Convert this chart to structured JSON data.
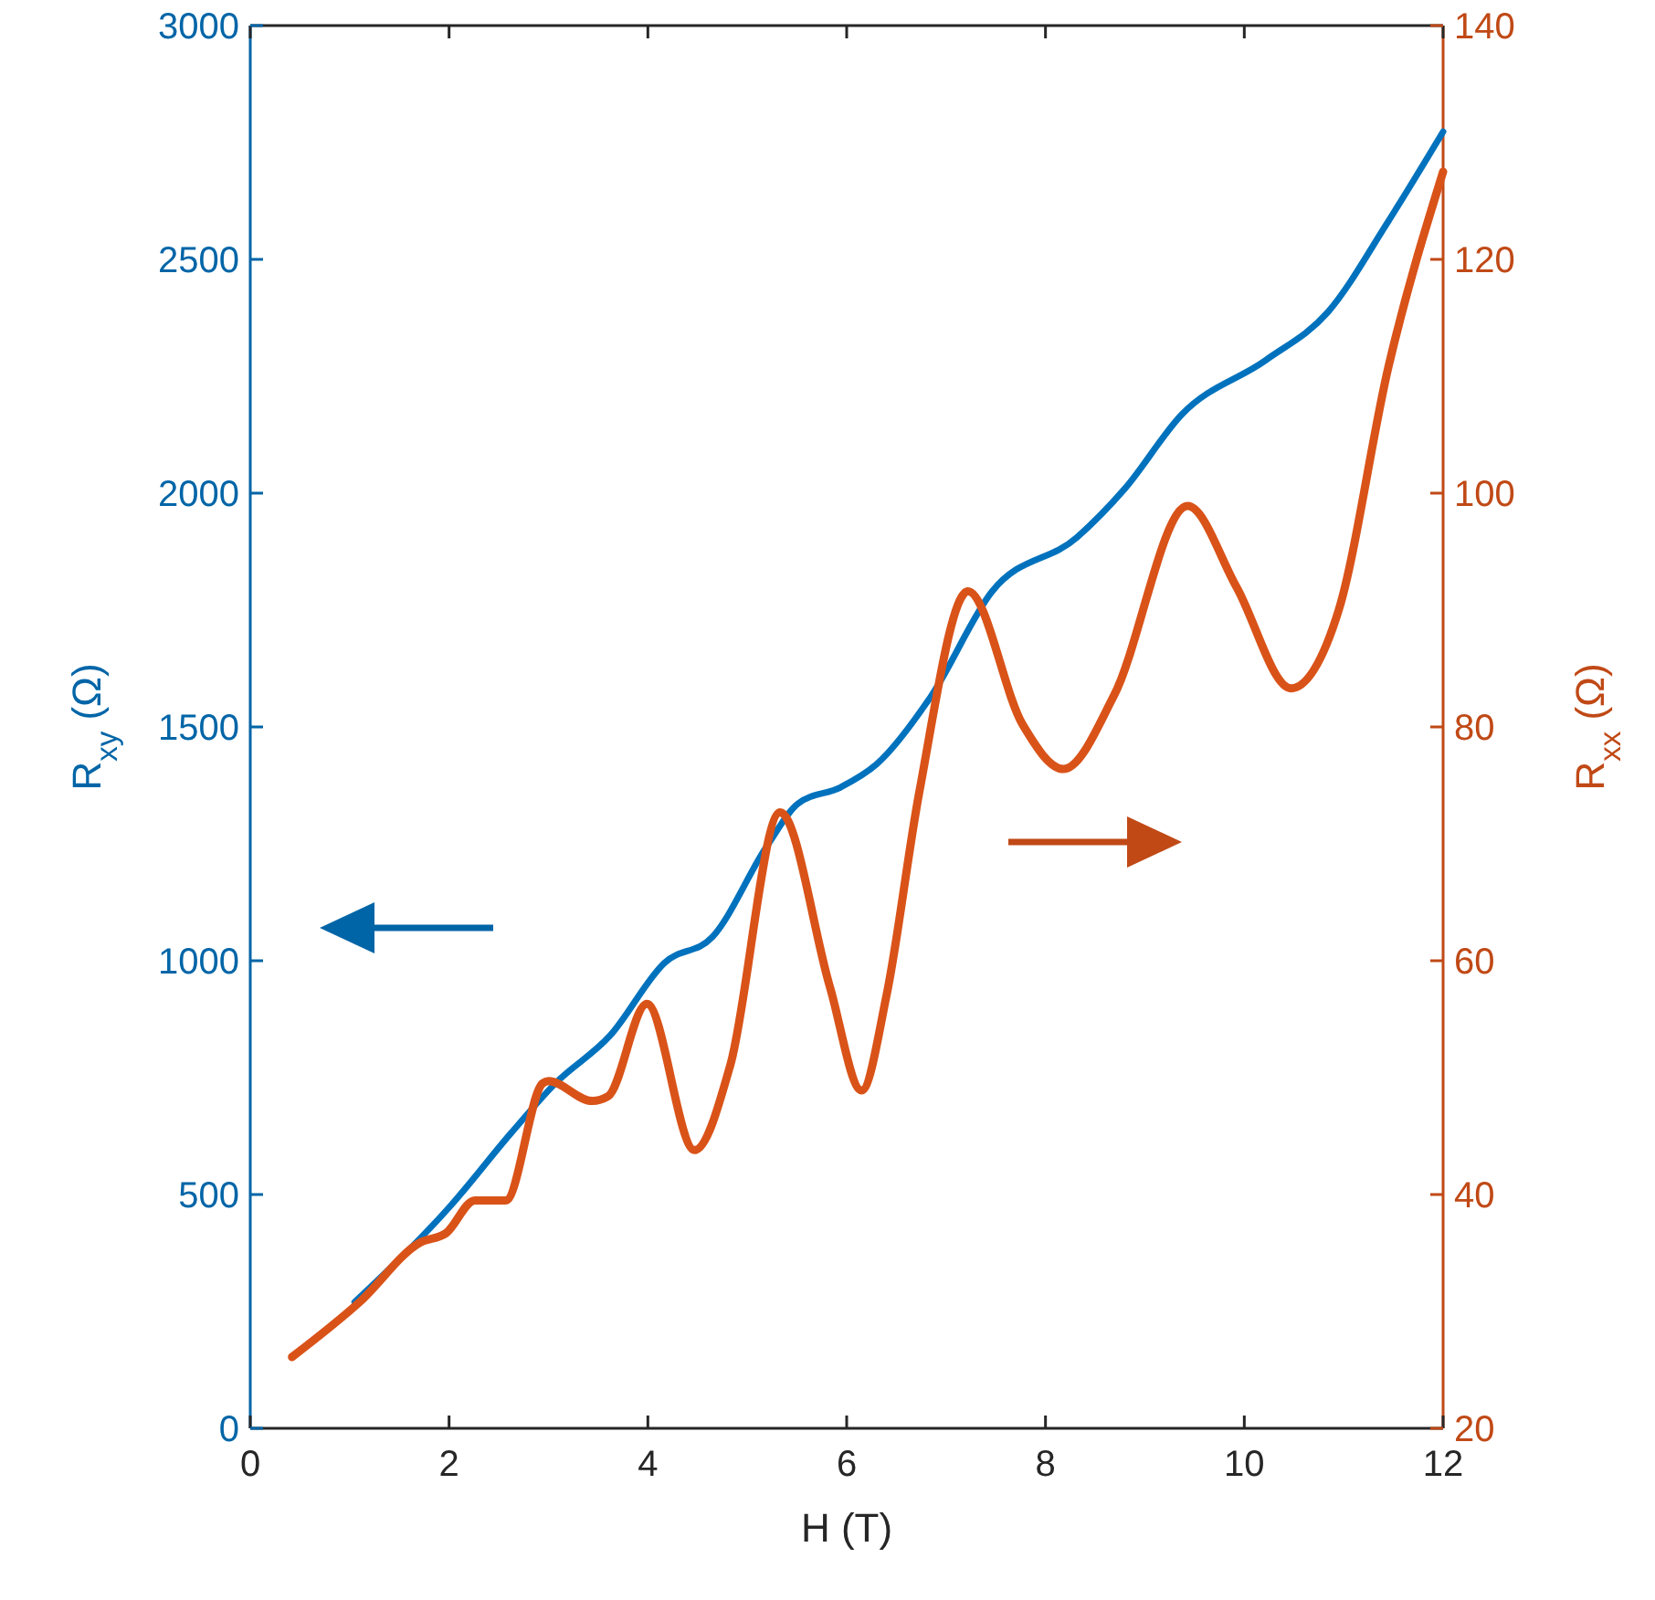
{
  "chart_data": {
    "type": "line",
    "xlabel": "H (T)",
    "ylabel": "R$_{xy}$ (Ω)",
    "y2label": "R$_{xx}$ (Ω)",
    "xlim": [
      0,
      12
    ],
    "xticks": [
      0,
      2,
      4,
      6,
      8,
      10,
      12
    ],
    "ylim": [
      0,
      3000
    ],
    "yticks": [
      0,
      500,
      1000,
      1500,
      2000,
      2500,
      3000
    ],
    "y2lim": [
      20,
      140
    ],
    "y2ticks": [
      20,
      40,
      60,
      80,
      100,
      120,
      140
    ],
    "grid": false,
    "series": [
      {
        "color": "#0072bd",
        "axis": "y",
        "x": [
          1.05,
          2.02,
          2.63,
          3.07,
          3.62,
          4.17,
          4.65,
          5.2,
          5.51,
          5.94,
          6.3,
          6.85,
          7.46,
          8.32,
          8.8,
          9.37,
          10.22,
          10.84,
          11.45,
          12
        ],
        "values": [
          270,
          477,
          633,
          738,
          840,
          996,
          1051,
          1246,
          1336,
          1371,
          1420,
          1566,
          1789,
          1906,
          2010,
          2168,
          2285,
          2387,
          2582,
          2773
        ]
      },
      {
        "color": "#d95319",
        "axis": "y2",
        "x": [
          0.42,
          1.1,
          1.71,
          1.97,
          2.26,
          2.57,
          2.94,
          3.0,
          3.44,
          3.6,
          3.99,
          4.47,
          4.83,
          5.33,
          5.83,
          6.15,
          6.4,
          6.73,
          7.22,
          7.77,
          8.18,
          8.69,
          9.43,
          9.92,
          10.47,
          10.95,
          11.45,
          12
        ],
        "values": [
          26.1,
          30.8,
          35.9,
          36.7,
          39.5,
          39.5,
          49.5,
          49.7,
          48.0,
          48.4,
          56.3,
          43.8,
          51.1,
          72.7,
          57.8,
          48.9,
          57,
          74.4,
          91.6,
          80.2,
          76.4,
          82.7,
          98.9,
          92,
          83.3,
          90,
          110.8,
          127.5
        ]
      }
    ]
  }
}
